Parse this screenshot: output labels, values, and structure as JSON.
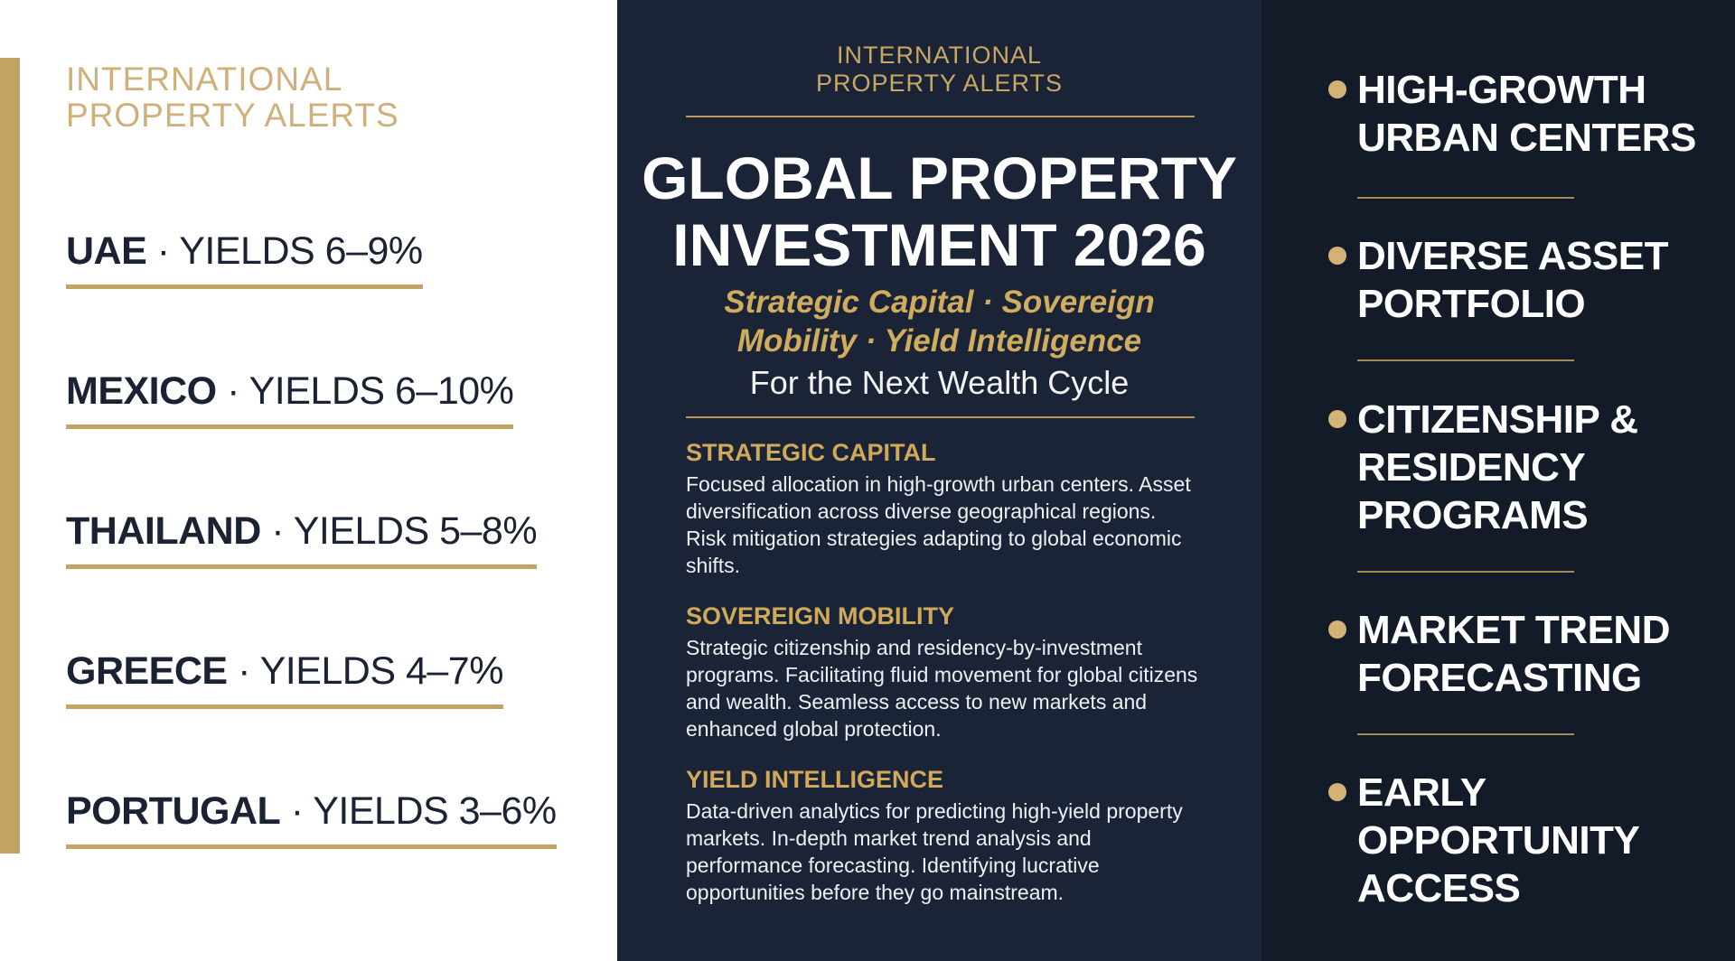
{
  "left": {
    "brand": [
      "INTERNATIONAL",
      "PROPERTY ALERTS"
    ],
    "separator": "·",
    "markets": [
      {
        "country": "UAE",
        "yields": "YIELDS 6–9%"
      },
      {
        "country": "MEXICO",
        "yields": "YIELDS 6–10%"
      },
      {
        "country": "THAILAND",
        "yields": "YIELDS 5–8%"
      },
      {
        "country": "GREECE",
        "yields": "YIELDS 4–7%"
      },
      {
        "country": "PORTUGAL",
        "yields": "YIELDS 3–6%"
      }
    ]
  },
  "center": {
    "brand": [
      "INTERNATIONAL",
      "PROPERTY ALERTS"
    ],
    "title": [
      "GLOBAL PROPERTY",
      "INVESTMENT 2026"
    ],
    "subtitle": [
      "Strategic Capital · Sovereign",
      "Mobility · Yield Intelligence"
    ],
    "tagline": "For the Next Wealth Cycle",
    "sections": [
      {
        "heading": "STRATEGIC CAPITAL",
        "body": "Focused allocation in high-growth urban centers. Asset diversification across diverse geographical regions. Risk mitigation strategies adapting to global economic shifts."
      },
      {
        "heading": "SOVEREIGN MOBILITY",
        "body": "Strategic citizenship and residency-by-investment programs. Facilitating fluid movement for global citizens and wealth. Seamless access to new markets and enhanced global protection."
      },
      {
        "heading": "YIELD INTELLIGENCE",
        "body": "Data-driven analytics for predicting high-yield property markets. In-depth market trend analysis and performance forecasting. Identifying lucrative opportunities before they go mainstream."
      }
    ]
  },
  "right": {
    "bullets": [
      {
        "lines": [
          "HIGH-GROWTH",
          "URBAN CENTERS"
        ]
      },
      {
        "lines": [
          "DIVERSE ASSET",
          "PORTFOLIO"
        ]
      },
      {
        "lines": [
          "CITIZENSHIP &",
          "RESIDENCY",
          "PROGRAMS"
        ]
      },
      {
        "lines": [
          "MARKET TREND",
          "FORECASTING"
        ]
      },
      {
        "lines": [
          "EARLY",
          "OPPORTUNITY",
          "ACCESS"
        ]
      }
    ]
  }
}
